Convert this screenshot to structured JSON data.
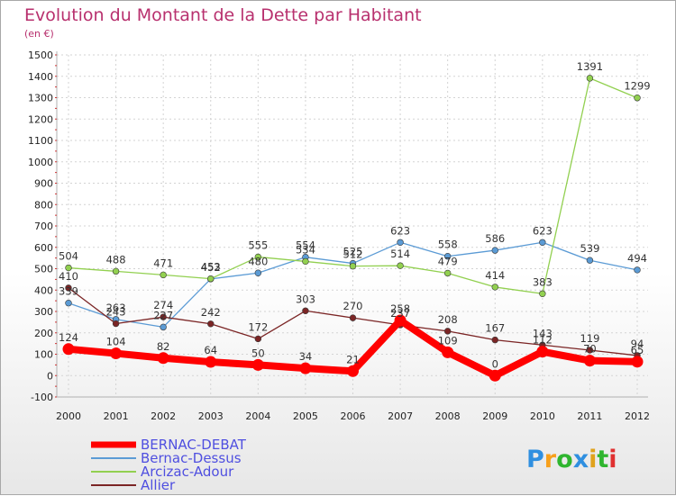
{
  "chart_data": {
    "type": "line",
    "title": "Evolution du Montant de la Dette par Habitant",
    "subtitle": "(en €)",
    "x": [
      "2000",
      "2001",
      "2002",
      "2003",
      "2004",
      "2005",
      "2006",
      "2007",
      "2008",
      "2009",
      "2010",
      "2011",
      "2012"
    ],
    "ylim": [
      -100,
      1500
    ],
    "yticks": [
      -100,
      0,
      100,
      200,
      300,
      400,
      500,
      600,
      700,
      800,
      900,
      1000,
      1100,
      1200,
      1300,
      1400,
      1500
    ],
    "grid": true,
    "legend_position": "bottom-left",
    "series": [
      {
        "name": "BERNAC-DEBAT",
        "color": "#ff0000",
        "values": [
          124,
          104,
          82,
          64,
          50,
          34,
          21,
          258,
          109,
          0,
          112,
          70,
          65
        ]
      },
      {
        "name": "Bernac-Dessus",
        "color": "#5b9bd5",
        "values": [
          339,
          263,
          227,
          452,
          480,
          554,
          525,
          623,
          558,
          586,
          623,
          539,
          494
        ]
      },
      {
        "name": "Arcizac-Adour",
        "color": "#92d050",
        "values": [
          504,
          488,
          471,
          453,
          555,
          534,
          512,
          514,
          479,
          414,
          383,
          1391,
          1299
        ]
      },
      {
        "name": "Allier",
        "color": "#7b2525",
        "values": [
          410,
          243,
          274,
          242,
          172,
          303,
          270,
          237,
          208,
          167,
          143,
          119,
          94
        ]
      }
    ]
  },
  "brand": {
    "letters": [
      "P",
      "r",
      "o",
      "x",
      "i",
      "t",
      "i"
    ],
    "colors": [
      "#2f8fe0",
      "#f7a01c",
      "#2fb52f",
      "#2f8fe0",
      "#e0a21c",
      "#2fb52f",
      "#e03030"
    ]
  }
}
